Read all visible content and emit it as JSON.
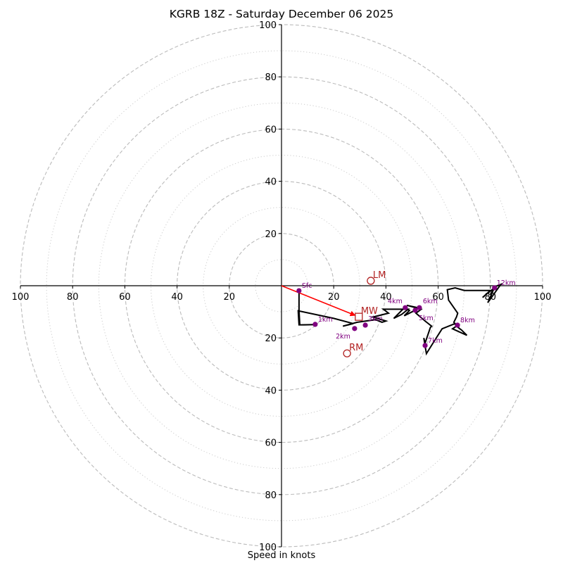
{
  "chart_data": {
    "type": "line",
    "subtype": "hodograph",
    "title": "KGRB 18Z - Saturday December 06 2025",
    "xlabel": "Speed in knots",
    "ylabel": "",
    "xlim": [
      -100,
      100
    ],
    "ylim": [
      -100,
      100
    ],
    "grid": true,
    "major_rings": [
      20,
      40,
      60,
      80,
      100
    ],
    "minor_rings": [
      10,
      30,
      50,
      70,
      90
    ],
    "x_tick_labels": [
      "100",
      "80",
      "60",
      "40",
      "20",
      "20",
      "40",
      "60",
      "80",
      "100"
    ],
    "x_tick_values": [
      -100,
      -80,
      -60,
      -40,
      -20,
      20,
      40,
      60,
      80,
      100
    ],
    "y_tick_labels": [
      "100",
      "80",
      "60",
      "40",
      "20",
      "20",
      "40",
      "60",
      "80",
      "100"
    ],
    "y_tick_values": [
      100,
      80,
      60,
      40,
      20,
      -20,
      -40,
      -60,
      -80,
      -100
    ],
    "colors": {
      "trace": "#000000",
      "height_markers": "#800080",
      "motion_markers": "#b22222",
      "mean_wind_vector": "#ff0000",
      "major_grid": "#bbbbbb",
      "minor_grid": "#cccccc"
    },
    "wind_trace": {
      "u": [
        6.7,
        6.7,
        7.0,
        12.8,
        8.6,
        6.7,
        6.4,
        20.0,
        27.5,
        23.5,
        29.0,
        36.0,
        38.5,
        40.0,
        35.0,
        41.0,
        39.0,
        48.5,
        46.0,
        43.0,
        47.0,
        49.0,
        47.0,
        51.0,
        52.5,
        48.0,
        53.5,
        51.5,
        55.0,
        57.5,
        57.0,
        55.0,
        54.5,
        55.5,
        58.0,
        61.5,
        66.5,
        67.0,
        65.5,
        71.0,
        69.0,
        67.0,
        66.0,
        67.0,
        67.5,
        64.0,
        63.5,
        66.5,
        70.0,
        80.0,
        77.0,
        81.5,
        79.0,
        84.0,
        81.5,
        80.0
      ],
      "v": [
        -1.9,
        -9.5,
        -15.0,
        -14.9,
        -15.0,
        -15.0,
        -9.6,
        -12.5,
        -14.5,
        -15.5,
        -14.0,
        -13.0,
        -14.0,
        -13.5,
        -12.0,
        -10.5,
        -9.0,
        -9.0,
        -11.0,
        -12.5,
        -8.5,
        -9.5,
        -11.5,
        -9.5,
        -8.5,
        -7.5,
        -9.0,
        -10.5,
        -13.5,
        -15.5,
        -16.0,
        -22.0,
        -20.0,
        -26.0,
        -22.0,
        -16.5,
        -14.5,
        -15.5,
        -16.5,
        -19.0,
        -17.0,
        -15.5,
        -14.0,
        -12.0,
        -10.5,
        -5.5,
        -1.5,
        -0.8,
        -1.8,
        -1.8,
        -4.5,
        -0.8,
        -6.5,
        0.5,
        -0.5,
        -3.5
      ]
    },
    "height_markers": [
      {
        "label": "Sfc",
        "u": 6.7,
        "v": -1.9
      },
      {
        "label": "1km",
        "u": 12.9,
        "v": -14.8
      },
      {
        "label": "2km",
        "u": 28.0,
        "v": -16.4
      },
      {
        "label": "3km",
        "u": 32.1,
        "v": -15.1
      },
      {
        "label": "4km",
        "u": 47.4,
        "v": -8.4
      },
      {
        "label": "5km",
        "u": 51.2,
        "v": -9.4
      },
      {
        "label": "6km",
        "u": 52.8,
        "v": -8.4
      },
      {
        "label": "7km",
        "u": 55.0,
        "v": -22.9
      },
      {
        "label": "8km",
        "u": 67.4,
        "v": -15.1
      },
      {
        "label": "12km",
        "u": 81.6,
        "v": -0.8
      }
    ],
    "storm_motions": [
      {
        "label": "LM",
        "u": 34.2,
        "v": 1.9,
        "marker": "circle"
      },
      {
        "label": "RM",
        "u": 25.1,
        "v": -25.9,
        "marker": "circle"
      },
      {
        "label": "MW",
        "u": 29.6,
        "v": -11.9,
        "marker": "square"
      }
    ],
    "mean_wind_vector": {
      "from_u": 0,
      "from_v": 0,
      "to_u": 29.6,
      "to_v": -11.9
    }
  }
}
